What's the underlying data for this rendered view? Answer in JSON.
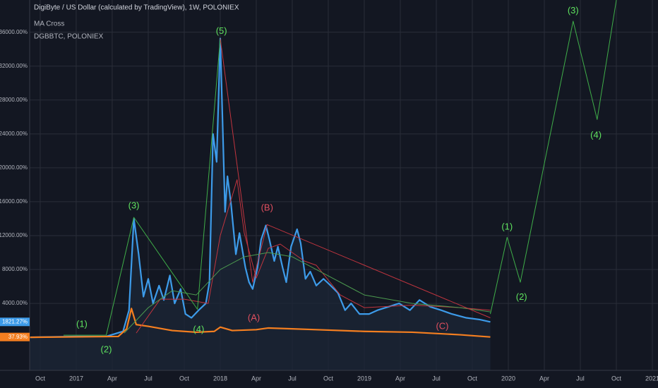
{
  "chart_data": {
    "type": "line",
    "title": "DigiByte / US Dollar (calculated by TradingView), 1W, POLONIEX",
    "indicator": "MA Cross",
    "xlim": [
      -3.88,
      48.47
    ],
    "ylim": [
      -3900,
      39800
    ],
    "grid": true,
    "xticks": [
      {
        "value": -3,
        "label": "Oct"
      },
      {
        "value": 0,
        "label": "2017"
      },
      {
        "value": 3,
        "label": "Apr"
      },
      {
        "value": 6,
        "label": "Jul"
      },
      {
        "value": 9,
        "label": "Oct"
      },
      {
        "value": 12,
        "label": "2018"
      },
      {
        "value": 15,
        "label": "Apr"
      },
      {
        "value": 18,
        "label": "Jul"
      },
      {
        "value": 21,
        "label": "Oct"
      },
      {
        "value": 24,
        "label": "2019"
      },
      {
        "value": 27,
        "label": "Apr"
      },
      {
        "value": 30,
        "label": "Jul"
      },
      {
        "value": 33,
        "label": "Oct"
      },
      {
        "value": 36,
        "label": "2020"
      },
      {
        "value": 39,
        "label": "Apr"
      },
      {
        "value": 42,
        "label": "Jul"
      },
      {
        "value": 45,
        "label": "Oct"
      },
      {
        "value": 48,
        "label": "2021"
      }
    ],
    "yticks": [
      {
        "value": 4000,
        "label": "4000.00%"
      },
      {
        "value": 8000,
        "label": "8000.00%"
      },
      {
        "value": 12000,
        "label": "12000.00%"
      },
      {
        "value": 16000,
        "label": "16000.00%"
      },
      {
        "value": 20000,
        "label": "20000.00%"
      },
      {
        "value": 24000,
        "label": "24000.00%"
      },
      {
        "value": 28000,
        "label": "28000.00%"
      },
      {
        "value": 32000,
        "label": "32000.00%"
      },
      {
        "value": 36000,
        "label": "36000.00%"
      }
    ],
    "series": [
      {
        "color": "#3d9be9",
        "width": 2.2,
        "area": true,
        "last_label": "1821.27%",
        "x": [
          -3.9,
          0,
          2.5,
          3.9,
          4.4,
          4.8,
          5.2,
          5.6,
          6,
          6.4,
          6.9,
          7.3,
          7.8,
          8.2,
          8.7,
          9.1,
          9.6,
          10.2,
          10.8,
          11.1,
          11.4,
          11.7,
          12,
          12.4,
          12.6,
          12.9,
          13.3,
          13.6,
          14.1,
          14.4,
          14.7,
          15.1,
          15.4,
          15.8,
          16.1,
          16.5,
          16.8,
          17.2,
          17.5,
          17.9,
          18.4,
          18.7,
          19.1,
          19.5,
          20,
          20.6,
          21.2,
          21.8,
          22.4,
          22.9,
          23.6,
          24.4,
          25.1,
          26,
          26.9,
          27.8,
          28.6,
          29.5,
          30.4,
          31.3,
          32.5,
          33.6,
          34.5
        ],
        "values": [
          0,
          100,
          100,
          700,
          3200,
          14000,
          9800,
          4800,
          6900,
          4000,
          6100,
          4400,
          7300,
          4000,
          5700,
          2750,
          2300,
          3200,
          4000,
          6500,
          24000,
          20700,
          35250,
          14800,
          19000,
          15700,
          9800,
          12300,
          8200,
          6500,
          5700,
          8200,
          11500,
          13200,
          11500,
          9000,
          10700,
          8200,
          6500,
          10700,
          12750,
          11100,
          6900,
          7750,
          6100,
          6900,
          6100,
          5250,
          3200,
          4000,
          2750,
          2750,
          3200,
          3600,
          4000,
          3200,
          4400,
          3600,
          3200,
          2750,
          2300,
          2100,
          1821.27
        ]
      },
      {
        "name": "DGBBTC, POLONIEX",
        "color": "#f57f20",
        "width": 2.2,
        "last_label": "37.93%",
        "x": [
          -3.9,
          3.5,
          4.2,
          4.6,
          5,
          6,
          8,
          10,
          11.5,
          12,
          13,
          15,
          16,
          18,
          20,
          24,
          28,
          32,
          34.5
        ],
        "values": [
          0,
          100,
          1000,
          3400,
          1500,
          1300,
          800,
          600,
          700,
          1200,
          800,
          900,
          1100,
          1000,
          900,
          700,
          600,
          300,
          37.93
        ]
      },
      {
        "color": "#c2353f",
        "width": 1,
        "x": [
          5,
          7,
          9,
          11,
          12,
          13.4,
          14,
          15,
          16,
          17,
          18,
          19,
          20,
          22,
          24,
          28,
          32,
          34.5
        ],
        "values": [
          500,
          4500,
          4500,
          4000,
          12000,
          18600,
          12300,
          7000,
          10500,
          11000,
          10000,
          9000,
          8500,
          5000,
          3500,
          3800,
          3500,
          3200
        ]
      },
      {
        "color": "#4c9a4f",
        "width": 1,
        "x": [
          4,
          6,
          8,
          10,
          12,
          14,
          16,
          18,
          20,
          24,
          28,
          32,
          34.5
        ],
        "values": [
          500,
          3500,
          5500,
          5000,
          8000,
          9500,
          10000,
          9500,
          8000,
          5000,
          4000,
          3500,
          3000
        ]
      },
      {
        "color": "#3fae49",
        "width": 1,
        "x": [
          -1.06,
          2.5,
          4.8,
          10.1,
          12
        ],
        "values": [
          250,
          250,
          14150,
          3300,
          35250
        ]
      },
      {
        "color": "#3fae49",
        "width": 1,
        "x": [
          34.5,
          35.9,
          37,
          41.4,
          43.4,
          45
        ],
        "values": [
          2750,
          11800,
          6500,
          37300,
          25700,
          39800
        ]
      },
      {
        "color": "#c2353f",
        "width": 1,
        "x": [
          12,
          14.7,
          15.9,
          34.5
        ],
        "values": [
          35250,
          6500,
          13300,
          2300
        ]
      }
    ],
    "annotations": [
      {
        "text": "(1)",
        "x": 0.47,
        "y": 1500,
        "color": "#5fe35f"
      },
      {
        "text": "(2)",
        "x": 2.5,
        "y": -1500,
        "color": "#5fe35f"
      },
      {
        "text": "(3)",
        "x": 4.8,
        "y": 15500,
        "color": "#5fe35f"
      },
      {
        "text": "(4)",
        "x": 10.2,
        "y": 900,
        "color": "#5fe35f"
      },
      {
        "text": "(5)",
        "x": 12.1,
        "y": 36100,
        "color": "#5fe35f"
      },
      {
        "text": "(A)",
        "x": 14.8,
        "y": 2250,
        "color": "#e04f5f"
      },
      {
        "text": "(B)",
        "x": 15.9,
        "y": 15250,
        "color": "#e04f5f"
      },
      {
        "text": "(C)",
        "x": 30.5,
        "y": 1250,
        "color": "#e04f5f"
      },
      {
        "text": "(1)",
        "x": 35.9,
        "y": 13000,
        "color": "#5fe35f"
      },
      {
        "text": "(2)",
        "x": 37.1,
        "y": 4700,
        "color": "#5fe35f"
      },
      {
        "text": "(3)",
        "x": 41.4,
        "y": 38500,
        "color": "#5fe35f"
      },
      {
        "text": "(4)",
        "x": 43.3,
        "y": 23800,
        "color": "#5fe35f"
      }
    ]
  }
}
